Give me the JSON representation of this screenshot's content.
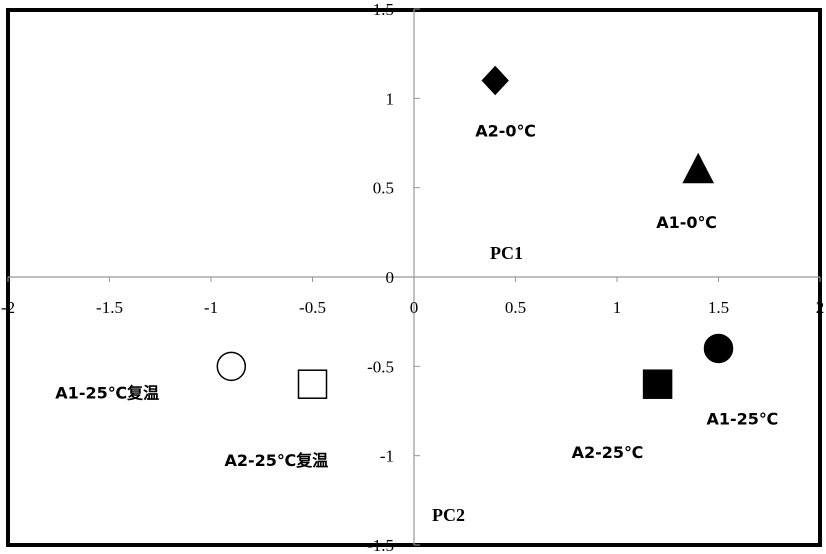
{
  "chart_data": {
    "type": "scatter",
    "title": "",
    "xlabel": "PC1",
    "ylabel": "PC2",
    "xlim": [
      -2,
      2
    ],
    "ylim": [
      -1.5,
      1.5
    ],
    "xticks": [
      "-2",
      "-1.5",
      "-1",
      "-0.5",
      "0",
      "0.5",
      "1",
      "1.5",
      "2"
    ],
    "yticks": [
      "1.5",
      "1",
      "0.5",
      "0",
      "-0.5",
      "-1",
      "-1.5"
    ],
    "grid": false,
    "points": [
      {
        "label": "A2-0℃",
        "x": 0.4,
        "y": 1.1,
        "marker": "diamond",
        "fill": "#000000"
      },
      {
        "label": "A1-0℃",
        "x": 1.4,
        "y": 0.6,
        "marker": "triangle",
        "fill": "#000000"
      },
      {
        "label": "A1-25℃",
        "x": 1.5,
        "y": -0.4,
        "marker": "circle",
        "fill": "#000000"
      },
      {
        "label": "A2-25℃",
        "x": 1.2,
        "y": -0.6,
        "marker": "square",
        "fill": "#000000"
      },
      {
        "label": "A1-25℃复温",
        "x": -0.9,
        "y": -0.5,
        "marker": "circle",
        "fill": "#ffffff"
      },
      {
        "label": "A2-25℃复温",
        "x": -0.5,
        "y": -0.6,
        "marker": "square",
        "fill": "#ffffff"
      }
    ]
  }
}
